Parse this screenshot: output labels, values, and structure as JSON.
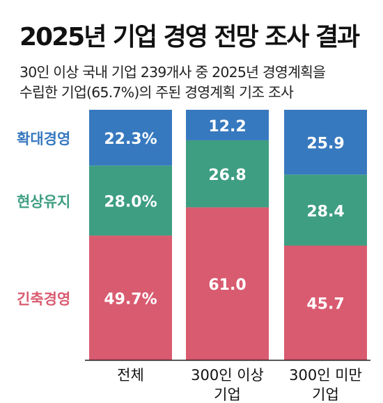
{
  "header": {
    "title": "2025년 기업 경영 전망 조사 결과",
    "subtitle_line1": "30인 이상 국내 기업 239개사 중 2025년 경영계획을",
    "subtitle_line2": "수립한 기업(65.7%)의 주된 경영계획 기조 조사"
  },
  "chart_data": {
    "type": "bar",
    "stacked": true,
    "title": "2025년 기업 경영 전망 조사 결과",
    "categories": [
      [
        "전체"
      ],
      [
        "300인 이상",
        "기업"
      ],
      [
        "300인 미만",
        "기업"
      ]
    ],
    "series": [
      {
        "name": "긴축경영",
        "color": "#d95b70",
        "values": [
          49.7,
          61.0,
          45.7
        ],
        "labels": [
          "49.7%",
          "61.0",
          "45.7"
        ]
      },
      {
        "name": "현상유지",
        "color": "#3e9e82",
        "values": [
          28.0,
          26.8,
          28.4
        ],
        "labels": [
          "28.0%",
          "26.8",
          "28.4"
        ]
      },
      {
        "name": "확대경영",
        "color": "#3779bf",
        "values": [
          22.3,
          12.2,
          25.9
        ],
        "labels": [
          "22.3%",
          "12.2",
          "25.9"
        ]
      }
    ],
    "ylim": [
      0,
      100
    ],
    "grid": false,
    "legend": "left"
  }
}
